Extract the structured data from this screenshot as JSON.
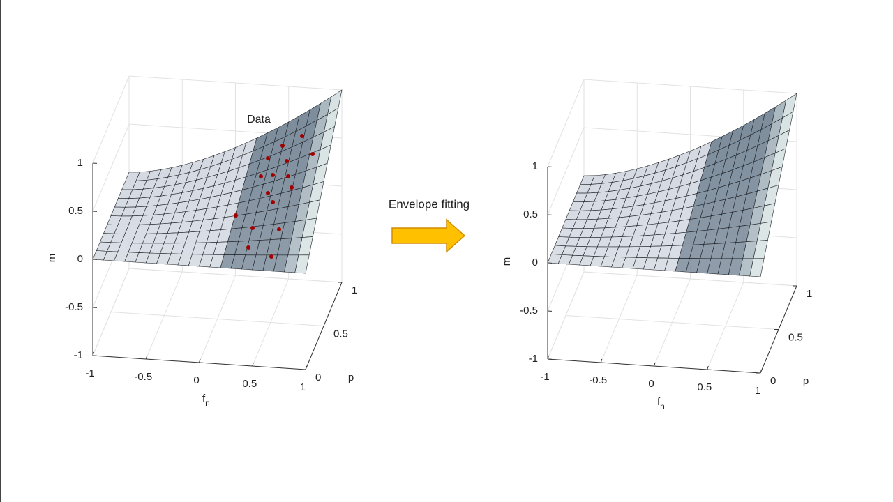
{
  "panels": [
    {
      "annotation": "Data",
      "z_axis": {
        "label": "m",
        "ticks": [
          -1,
          -0.5,
          0,
          0.5,
          1
        ]
      },
      "x_axis": {
        "label": "f",
        "label_sub": "n",
        "ticks": [
          -1,
          -0.5,
          0,
          0.5,
          1
        ]
      },
      "y_axis": {
        "label": "p",
        "ticks": [
          0,
          0.5,
          1
        ]
      }
    },
    {
      "z_axis": {
        "label": "m",
        "ticks": [
          -1,
          -0.5,
          0,
          0.5,
          1
        ]
      },
      "x_axis": {
        "label": "f",
        "label_sub": "n",
        "ticks": [
          -1,
          -0.5,
          0,
          0.5,
          1
        ]
      },
      "y_axis": {
        "label": "p",
        "ticks": [
          0,
          0.5,
          1
        ]
      }
    }
  ],
  "arrow_label": "Envelope fitting"
}
